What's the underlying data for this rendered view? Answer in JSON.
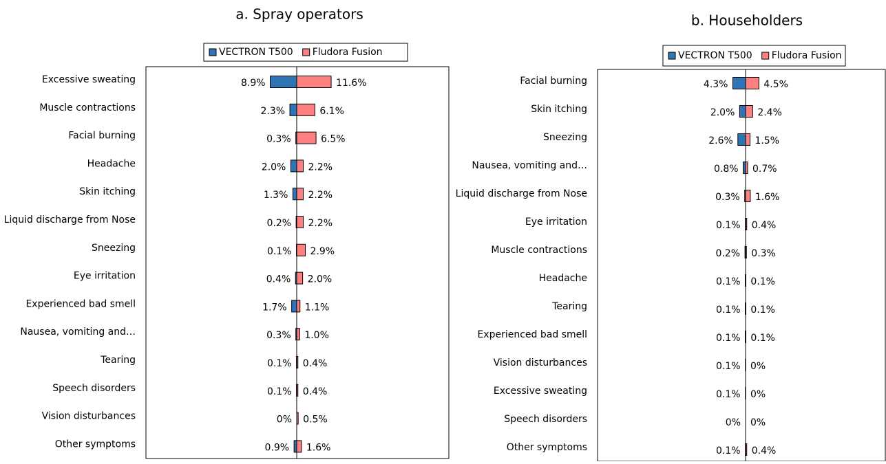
{
  "chart_data": [
    {
      "type": "butterfly-bar",
      "title": "a. Spray operators",
      "categories": [
        "Excessive sweating",
        "Muscle contractions",
        "Facial burning",
        "Headache",
        "Skin itching",
        "Liquid discharge from Nose",
        "Sneezing",
        "Eye irritation",
        "Experienced bad smell",
        "Nausea, vomiting and…",
        "Tearing",
        "Speech disorders",
        "Vision disturbances",
        "Other symptoms"
      ],
      "series": [
        {
          "name": "VECTRON T500",
          "color": "#2e75b6",
          "values": [
            8.9,
            2.3,
            0.3,
            2.0,
            1.3,
            0.2,
            0.1,
            0.4,
            1.7,
            0.3,
            0.1,
            0.1,
            0,
            0.9
          ],
          "value_labels": [
            "8.9%",
            "2.3%",
            "0.3%",
            "2.0%",
            "1.3%",
            "0.2%",
            "0.1%",
            "0.4%",
            "1.7%",
            "0.3%",
            "0.1%",
            "0.1%",
            "0%",
            "0.9%"
          ]
        },
        {
          "name": "Fludora Fusion",
          "color": "#ff8080",
          "values": [
            11.6,
            6.1,
            6.5,
            2.2,
            2.2,
            2.2,
            2.9,
            2.0,
            1.1,
            1.0,
            0.4,
            0.4,
            0.5,
            1.6
          ],
          "value_labels": [
            "11.6%",
            "6.1%",
            "6.5%",
            "2.2%",
            "2.2%",
            "2.2%",
            "2.9%",
            "2.0%",
            "1.1%",
            "1.0%",
            "0.4%",
            "0.4%",
            "0.5%",
            "1.6%"
          ]
        }
      ],
      "xlim": [
        -51,
        51
      ]
    },
    {
      "type": "butterfly-bar",
      "title": "b. Householders",
      "categories": [
        "Facial burning",
        "Skin itching",
        "Sneezing",
        "Nausea, vomiting and…",
        "Liquid discharge from Nose",
        "Eye irritation",
        "Muscle contractions",
        "Headache",
        "Tearing",
        "Experienced bad smell",
        "Vision disturbances",
        "Excessive sweating",
        "Speech disorders",
        "Other symptoms"
      ],
      "series": [
        {
          "name": "VECTRON T500",
          "color": "#2e75b6",
          "values": [
            4.3,
            2.0,
            2.6,
            0.8,
            0.3,
            0.1,
            0.2,
            0.1,
            0.1,
            0.1,
            0.1,
            0.1,
            0,
            0.1
          ],
          "value_labels": [
            "4.3%",
            "2.0%",
            "2.6%",
            "0.8%",
            "0.3%",
            "0.1%",
            "0.2%",
            "0.1%",
            "0.1%",
            "0.1%",
            "0.1%",
            "0.1%",
            "0%",
            "0.1%"
          ]
        },
        {
          "name": "Fludora Fusion",
          "color": "#ff8080",
          "values": [
            4.5,
            2.4,
            1.5,
            0.7,
            1.6,
            0.4,
            0.3,
            0.1,
            0.1,
            0.1,
            0,
            0,
            0,
            0.4
          ],
          "value_labels": [
            "4.5%",
            "2.4%",
            "1.5%",
            "0.7%",
            "1.6%",
            "0.4%",
            "0.3%",
            "0.1%",
            "0.1%",
            "0.1%",
            "0%",
            "0%",
            "0%",
            "0.4%"
          ]
        }
      ],
      "xlim": [
        -50,
        50
      ]
    }
  ]
}
